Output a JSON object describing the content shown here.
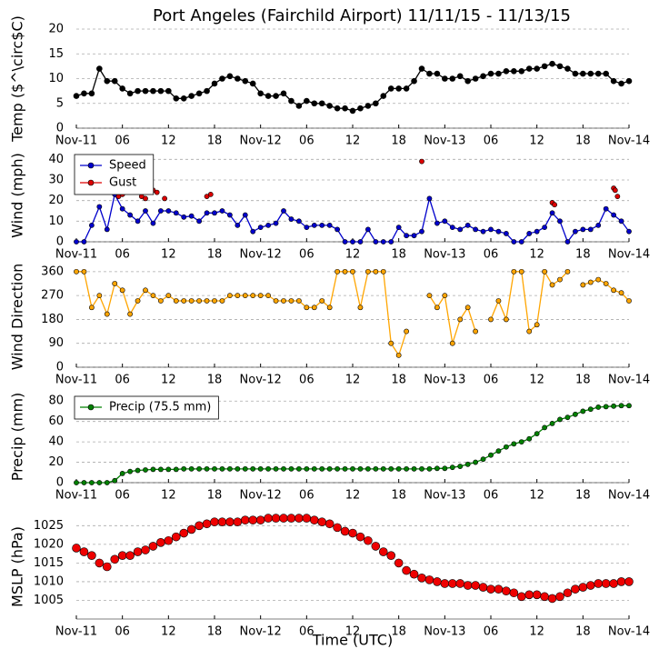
{
  "chart_data": [
    {
      "type": "line",
      "title": "Port Angeles (Fairchild Airport) 11/11/15 - 11/13/15",
      "ylabel": "Temp ($^\\circ$C)",
      "xlim": [
        0,
        72
      ],
      "xticks": [
        {
          "value": 0,
          "label": "Nov-11"
        },
        {
          "value": 6,
          "label": "06"
        },
        {
          "value": 12,
          "label": "12"
        },
        {
          "value": 18,
          "label": "18"
        },
        {
          "value": 24,
          "label": "Nov-12"
        },
        {
          "value": 30,
          "label": "06"
        },
        {
          "value": 36,
          "label": "12"
        },
        {
          "value": 42,
          "label": "18"
        },
        {
          "value": 48,
          "label": "Nov-13"
        },
        {
          "value": 54,
          "label": "06"
        },
        {
          "value": 60,
          "label": "12"
        },
        {
          "value": 66,
          "label": "18"
        },
        {
          "value": 72,
          "label": "Nov-14"
        }
      ],
      "ylim": [
        0,
        20
      ],
      "yticks": [
        0,
        5,
        10,
        15,
        20
      ],
      "grid": true,
      "x": [
        0,
        1,
        2,
        3,
        4,
        5,
        6,
        7,
        8,
        9,
        10,
        11,
        12,
        13,
        14,
        15,
        16,
        17,
        18,
        19,
        20,
        21,
        22,
        23,
        24,
        25,
        26,
        27,
        28,
        29,
        30,
        31,
        32,
        33,
        34,
        35,
        36,
        37,
        38,
        39,
        40,
        41,
        42,
        43,
        44,
        45,
        46,
        47,
        48,
        49,
        50,
        51,
        52,
        53,
        54,
        55,
        56,
        57,
        58,
        59,
        60,
        61,
        62,
        63,
        64,
        65,
        66,
        67,
        68,
        69,
        70,
        71,
        72
      ],
      "series": [
        {
          "color": "#000000",
          "linestyle": "solid",
          "values": [
            6.5,
            7,
            7,
            12,
            9.5,
            9.5,
            8,
            7,
            7.5,
            7.5,
            7.5,
            7.5,
            7.5,
            6,
            6,
            6.5,
            7,
            7.5,
            9,
            10,
            10.5,
            10,
            9.5,
            9,
            7,
            6.5,
            6.5,
            7,
            5.5,
            4.5,
            5.5,
            5,
            5,
            4.5,
            4,
            4,
            3.5,
            4,
            4.5,
            5,
            6.5,
            8,
            8,
            8,
            9.5,
            12,
            11,
            11,
            10,
            10,
            10.5,
            9.5,
            10,
            10.5,
            11,
            11,
            11.5,
            11.5,
            11.5,
            12,
            12,
            12.5,
            13,
            12.5,
            12,
            11,
            11,
            11,
            11,
            11,
            9.5,
            9,
            9.5
          ]
        }
      ]
    },
    {
      "type": "line",
      "ylabel": "Wind (mph)",
      "xlim": [
        0,
        72
      ],
      "xticks": [
        {
          "value": 0,
          "label": "Nov-11"
        },
        {
          "value": 6,
          "label": "06"
        },
        {
          "value": 12,
          "label": "12"
        },
        {
          "value": 18,
          "label": "18"
        },
        {
          "value": 24,
          "label": "Nov-12"
        },
        {
          "value": 30,
          "label": "06"
        },
        {
          "value": 36,
          "label": "12"
        },
        {
          "value": 42,
          "label": "18"
        },
        {
          "value": 48,
          "label": "Nov-13"
        },
        {
          "value": 54,
          "label": "06"
        },
        {
          "value": 60,
          "label": "12"
        },
        {
          "value": 66,
          "label": "18"
        },
        {
          "value": 72,
          "label": "Nov-14"
        }
      ],
      "ylim": [
        0,
        45
      ],
      "yticks": [
        0,
        10,
        20,
        30,
        40
      ],
      "grid": true,
      "legend": "upper left",
      "x": [
        0,
        1,
        2,
        3,
        4,
        5,
        6,
        7,
        8,
        9,
        10,
        11,
        12,
        13,
        14,
        15,
        16,
        17,
        18,
        19,
        20,
        21,
        22,
        23,
        24,
        25,
        26,
        27,
        28,
        29,
        30,
        31,
        32,
        33,
        34,
        35,
        36,
        37,
        38,
        39,
        40,
        41,
        42,
        43,
        44,
        45,
        46,
        47,
        48,
        49,
        50,
        51,
        52,
        53,
        54,
        55,
        56,
        57,
        58,
        59,
        60,
        61,
        62,
        63,
        64,
        65,
        66,
        67,
        68,
        69,
        70,
        71,
        72
      ],
      "series": [
        {
          "name": "Speed",
          "color": "#0000cc",
          "linestyle": "solid",
          "values": [
            0,
            0,
            8,
            17,
            6,
            23,
            16,
            13,
            10,
            15,
            9,
            15,
            15,
            14,
            12,
            12.5,
            10,
            14,
            14,
            15,
            13,
            8,
            13,
            5,
            7,
            8,
            9,
            15,
            11,
            10,
            7,
            8,
            8,
            8,
            6,
            0,
            0,
            0,
            6,
            0,
            0,
            0,
            7,
            3,
            3,
            5,
            21,
            9,
            10,
            7,
            6,
            8,
            6,
            5,
            6,
            5,
            4,
            0,
            0,
            4,
            5,
            7,
            14,
            10,
            0,
            5,
            6,
            6,
            8,
            16,
            13,
            10,
            5
          ]
        },
        {
          "name": "Gust",
          "color": "#dd0000",
          "linestyle": "none",
          "x": [
            5.5,
            6,
            8.5,
            9,
            10,
            10.5,
            11.5,
            17,
            17.5,
            45,
            62,
            62.3,
            70,
            70.2,
            70.5
          ],
          "values": [
            22,
            23,
            22,
            21,
            25,
            24,
            21,
            22,
            23,
            39,
            19,
            18,
            26,
            25,
            22
          ]
        }
      ]
    },
    {
      "type": "line",
      "ylabel": "Wind Direction",
      "xlim": [
        0,
        72
      ],
      "xticks": [
        {
          "value": 0,
          "label": "Nov-11"
        },
        {
          "value": 6,
          "label": "06"
        },
        {
          "value": 12,
          "label": "12"
        },
        {
          "value": 18,
          "label": "18"
        },
        {
          "value": 24,
          "label": "Nov-12"
        },
        {
          "value": 30,
          "label": "06"
        },
        {
          "value": 36,
          "label": "12"
        },
        {
          "value": 42,
          "label": "18"
        },
        {
          "value": 48,
          "label": "Nov-13"
        },
        {
          "value": 54,
          "label": "06"
        },
        {
          "value": 60,
          "label": "12"
        },
        {
          "value": 66,
          "label": "18"
        },
        {
          "value": 72,
          "label": "Nov-14"
        }
      ],
      "ylim": [
        0,
        380
      ],
      "yticks": [
        0,
        90,
        180,
        270,
        360
      ],
      "grid": true,
      "x": [
        0,
        1,
        2,
        3,
        4,
        5,
        6,
        7,
        8,
        9,
        10,
        11,
        12,
        13,
        14,
        15,
        16,
        17,
        18,
        19,
        20,
        21,
        22,
        23,
        24,
        25,
        26,
        27,
        28,
        29,
        30,
        31,
        32,
        33,
        34,
        35,
        36,
        37,
        38,
        39,
        40,
        41,
        42,
        43,
        44,
        45,
        46,
        47,
        48,
        49,
        50,
        51,
        52,
        53,
        54,
        55,
        56,
        57,
        58,
        59,
        60,
        61,
        62,
        63,
        64,
        65,
        66,
        67,
        68,
        69,
        70,
        71,
        72
      ],
      "series": [
        {
          "color": "#ffa500",
          "linestyle": "solid",
          "values": [
            360,
            360,
            225,
            270,
            200,
            315,
            290,
            200,
            250,
            290,
            270,
            250,
            270,
            250,
            250,
            250,
            250,
            250,
            250,
            250,
            270,
            270,
            270,
            270,
            270,
            270,
            250,
            250,
            250,
            250,
            225,
            225,
            250,
            225,
            360,
            360,
            360,
            225,
            360,
            360,
            360,
            90,
            45,
            135,
            null,
            null,
            270,
            225,
            270,
            90,
            180,
            225,
            135,
            null,
            180,
            250,
            180,
            360,
            360,
            135,
            160,
            360,
            310,
            330,
            360,
            null,
            310,
            320,
            330,
            315,
            290,
            280,
            250
          ]
        }
      ]
    },
    {
      "type": "line",
      "ylabel": "Precip (mm)",
      "xlim": [
        0,
        72
      ],
      "xticks": [
        {
          "value": 0,
          "label": "Nov-11"
        },
        {
          "value": 6,
          "label": "06"
        },
        {
          "value": 12,
          "label": "12"
        },
        {
          "value": 18,
          "label": "18"
        },
        {
          "value": 24,
          "label": "Nov-12"
        },
        {
          "value": 30,
          "label": "06"
        },
        {
          "value": 36,
          "label": "12"
        },
        {
          "value": 42,
          "label": "18"
        },
        {
          "value": 48,
          "label": "Nov-13"
        },
        {
          "value": 54,
          "label": "06"
        },
        {
          "value": 60,
          "label": "12"
        },
        {
          "value": 66,
          "label": "18"
        },
        {
          "value": 72,
          "label": "Nov-14"
        }
      ],
      "ylim": [
        0,
        90
      ],
      "yticks": [
        0,
        20,
        40,
        60,
        80
      ],
      "grid": true,
      "legend": "upper left",
      "x": [
        0,
        1,
        2,
        3,
        4,
        5,
        6,
        7,
        8,
        9,
        10,
        11,
        12,
        13,
        14,
        15,
        16,
        17,
        18,
        19,
        20,
        21,
        22,
        23,
        24,
        25,
        26,
        27,
        28,
        29,
        30,
        31,
        32,
        33,
        34,
        35,
        36,
        37,
        38,
        39,
        40,
        41,
        42,
        43,
        44,
        45,
        46,
        47,
        48,
        49,
        50,
        51,
        52,
        53,
        54,
        55,
        56,
        57,
        58,
        59,
        60,
        61,
        62,
        63,
        64,
        65,
        66,
        67,
        68,
        69,
        70,
        71,
        72
      ],
      "series": [
        {
          "name": "Precip (75.5 mm)",
          "color": "#008000",
          "linestyle": "solid",
          "values": [
            0,
            0,
            0,
            0,
            0,
            2,
            9,
            11,
            12,
            12.5,
            13,
            13,
            13,
            13,
            13.5,
            13.5,
            13.5,
            13.5,
            13.5,
            13.5,
            13.5,
            13.5,
            13.5,
            13.5,
            13.5,
            13.5,
            13.5,
            13.5,
            13.5,
            13.5,
            13.5,
            13.5,
            13.5,
            13.5,
            13.5,
            13.5,
            13.5,
            13.5,
            13.5,
            13.5,
            13.5,
            13.5,
            13.5,
            13.5,
            13.5,
            13.5,
            13.5,
            14,
            14,
            15,
            16,
            18,
            20,
            23,
            27,
            31,
            35,
            38,
            40,
            43,
            48,
            54,
            58,
            62,
            64,
            67,
            70,
            72,
            74,
            74.5,
            75,
            75.5,
            75.5
          ]
        }
      ]
    },
    {
      "type": "line",
      "ylabel": "MSLP (hPa)",
      "xlabel": "Time (UTC)",
      "xlim": [
        0,
        72
      ],
      "xticks": [
        {
          "value": 0,
          "label": "Nov-11"
        },
        {
          "value": 6,
          "label": "06"
        },
        {
          "value": 12,
          "label": "12"
        },
        {
          "value": 18,
          "label": "18"
        },
        {
          "value": 24,
          "label": "Nov-12"
        },
        {
          "value": 30,
          "label": "06"
        },
        {
          "value": 36,
          "label": "12"
        },
        {
          "value": 42,
          "label": "18"
        },
        {
          "value": 48,
          "label": "Nov-13"
        },
        {
          "value": 54,
          "label": "06"
        },
        {
          "value": 60,
          "label": "12"
        },
        {
          "value": 66,
          "label": "18"
        },
        {
          "value": 72,
          "label": "Nov-14"
        }
      ],
      "ylim": [
        1000,
        1028
      ],
      "yticks": [
        1005,
        1010,
        1015,
        1020,
        1025
      ],
      "grid": true,
      "x": [
        0,
        1,
        2,
        3,
        4,
        5,
        6,
        7,
        8,
        9,
        10,
        11,
        12,
        13,
        14,
        15,
        16,
        17,
        18,
        19,
        20,
        21,
        22,
        23,
        24,
        25,
        26,
        27,
        28,
        29,
        30,
        31,
        32,
        33,
        34,
        35,
        36,
        37,
        38,
        39,
        40,
        41,
        42,
        43,
        44,
        45,
        46,
        47,
        48,
        49,
        50,
        51,
        52,
        53,
        54,
        55,
        56,
        57,
        58,
        59,
        60,
        61,
        62,
        63,
        64,
        65,
        66,
        67,
        68,
        69,
        70,
        71,
        72
      ],
      "series": [
        {
          "color": "#ee0000",
          "linestyle": "none",
          "values": [
            1019,
            1018,
            1017,
            1015,
            1014,
            1016,
            1017,
            1017,
            1018,
            1018.5,
            1019.5,
            1020.5,
            1021,
            1022,
            1023,
            1024,
            1025,
            1025.5,
            1026,
            1026,
            1026,
            1026,
            1026.5,
            1026.5,
            1026.5,
            1027,
            1027,
            1027,
            1027,
            1027,
            1027,
            1026.5,
            1026,
            1025.5,
            1024.5,
            1023.5,
            1023,
            1022,
            1021,
            1019.5,
            1018,
            1017,
            1015,
            1013,
            1012,
            1011,
            1010.5,
            1010,
            1009.5,
            1009.5,
            1009.5,
            1009,
            1009,
            1008.5,
            1008,
            1008,
            1007.5,
            1007,
            1006,
            1006.5,
            1006.5,
            1006,
            1005.5,
            1006,
            1007,
            1008,
            1008.5,
            1009,
            1009.5,
            1009.5,
            1009.5,
            1010,
            1010
          ]
        }
      ]
    }
  ]
}
